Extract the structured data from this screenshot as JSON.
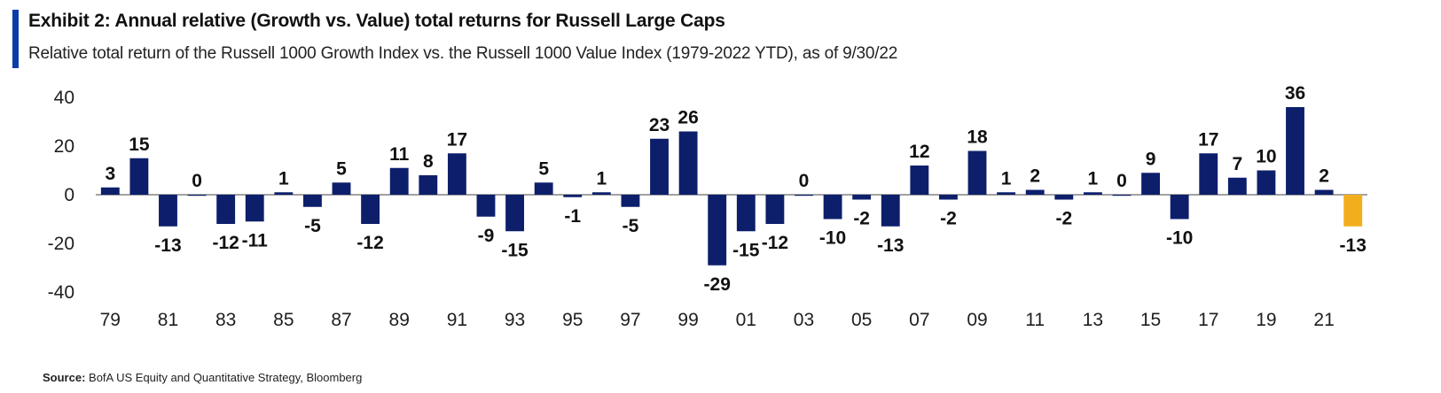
{
  "header": {
    "title": "Exhibit 2: Annual relative (Growth vs. Value) total returns for Russell Large Caps",
    "subtitle": "Relative total return of the Russell 1000 Growth Index vs. the Russell 1000 Value Index (1979-2022 YTD), as of 9/30/22"
  },
  "source": {
    "label": "Source:",
    "text": "BofA US Equity and Quantitative Strategy, Bloomberg"
  },
  "colors": {
    "bar": "#0d1f6b",
    "highlight": "#f2ae1c",
    "accent": "#0b3da8"
  },
  "chart_data": {
    "type": "bar",
    "categories": [
      "79",
      "80",
      "81",
      "82",
      "83",
      "84",
      "85",
      "86",
      "87",
      "88",
      "89",
      "90",
      "91",
      "92",
      "93",
      "94",
      "95",
      "96",
      "97",
      "98",
      "99",
      "00",
      "01",
      "02",
      "03",
      "04",
      "05",
      "06",
      "07",
      "08",
      "09",
      "10",
      "11",
      "12",
      "13",
      "14",
      "15",
      "16",
      "17",
      "18",
      "19",
      "20",
      "21",
      "22"
    ],
    "values": [
      3,
      15,
      -13,
      0,
      -12,
      -11,
      1,
      -5,
      5,
      -12,
      11,
      8,
      17,
      -9,
      -15,
      5,
      -1,
      1,
      -5,
      23,
      26,
      -29,
      -15,
      -12,
      0,
      -10,
      -2,
      -13,
      12,
      -2,
      18,
      1,
      2,
      -2,
      1,
      0,
      9,
      -10,
      17,
      7,
      10,
      36,
      2,
      -13
    ],
    "x_tick_labels": [
      "79",
      "81",
      "83",
      "85",
      "87",
      "89",
      "91",
      "93",
      "95",
      "97",
      "99",
      "01",
      "03",
      "05",
      "07",
      "09",
      "11",
      "13",
      "15",
      "17",
      "19",
      "21"
    ],
    "y_ticks": [
      40,
      20,
      0,
      -20,
      -40
    ],
    "ylim": [
      -40,
      40
    ],
    "highlight_index": 43,
    "grid": false,
    "legend": "none"
  }
}
